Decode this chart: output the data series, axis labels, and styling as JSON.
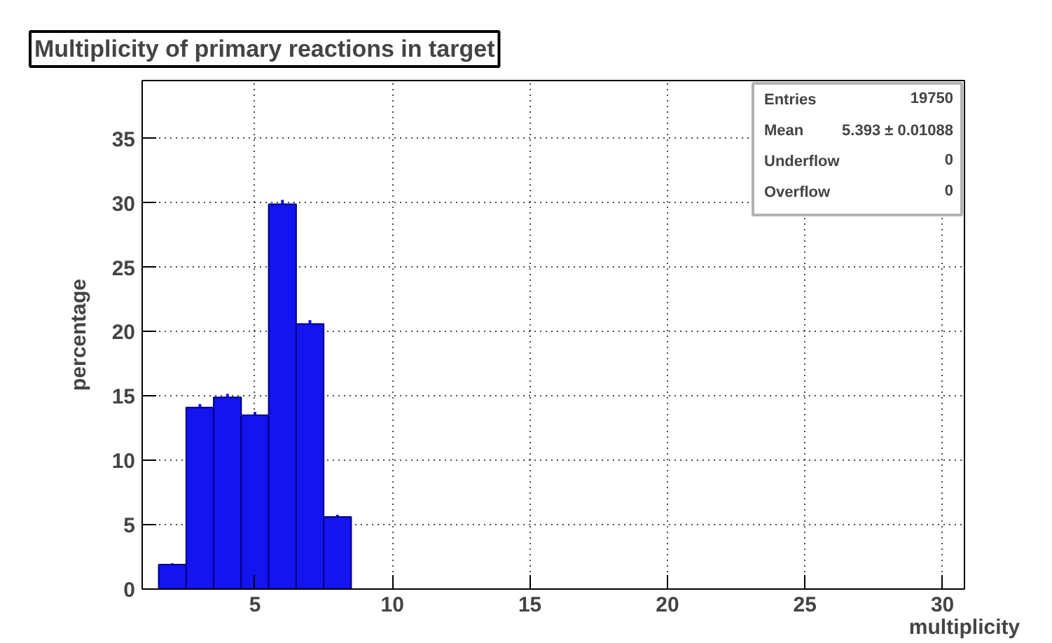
{
  "chart_data": {
    "type": "histogram",
    "title": "Multiplicity of primary reactions in target",
    "xlabel": "multiplicity",
    "ylabel": "percentage",
    "bins": [
      1.5,
      2.5,
      3.5,
      4.5,
      5.5,
      6.5,
      7.5,
      8.5
    ],
    "values": [
      1.9,
      14.1,
      14.9,
      13.5,
      29.9,
      20.6,
      5.6
    ],
    "errors": [
      0.1,
      0.27,
      0.27,
      0.26,
      0.33,
      0.29,
      0.17
    ],
    "color": "#1414f0",
    "xlim": [
      0.9,
      30.8
    ],
    "xticks": [
      5,
      10,
      15,
      20,
      25,
      30
    ],
    "ylim": [
      0,
      39.5
    ],
    "yticks": [
      0,
      5,
      10,
      15,
      20,
      25,
      30,
      35
    ],
    "grid": true,
    "annotations": [
      "Entries",
      "19750",
      "Mean",
      "5.393 ± 0.01088",
      "Underflow",
      "0",
      "Overflow",
      "0"
    ]
  }
}
